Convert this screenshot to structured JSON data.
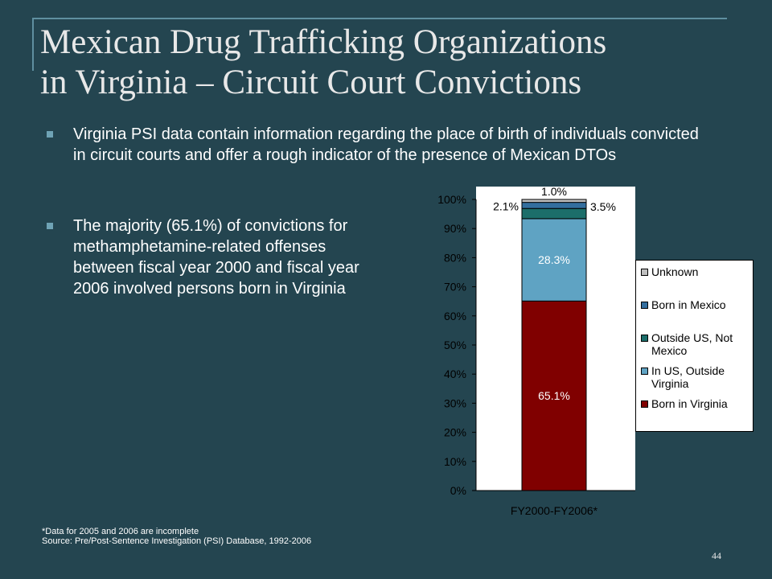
{
  "slide": {
    "title_line1": "Mexican Drug Trafficking Organizations",
    "title_line2": "in Virginia – Circuit Court Convictions",
    "bullet1": "Virginia PSI data contain information regarding the place of birth of individuals convicted in circuit courts and offer a rough indicator of the presence of Mexican DTOs",
    "bullet2": "The majority (65.1%) of convictions for methamphetamine-related offenses between fiscal year 2000 and fiscal year 2006 involved persons born in Virginia",
    "footnote1": "*Data for 2005 and 2006 are incomplete",
    "footnote2": "Source:  Pre/Post-Sentence Investigation (PSI) Database, 1992-2006",
    "page_number": "44"
  },
  "colors": {
    "background": "#244550",
    "plot_background": "#ffffff",
    "text": "#ffffff"
  },
  "chart_data": {
    "type": "bar",
    "stacked": true,
    "percent_stacked": true,
    "categories": [
      "FY2000-FY2006*"
    ],
    "ylim": [
      0,
      100
    ],
    "yticks": [
      "0%",
      "10%",
      "20%",
      "30%",
      "40%",
      "50%",
      "60%",
      "70%",
      "80%",
      "90%",
      "100%"
    ],
    "grid": false,
    "legend_position": "right",
    "series": [
      {
        "name": "Born in Virginia",
        "values": [
          65.1
        ],
        "label": "65.1%",
        "color": "#800000"
      },
      {
        "name": "In US, Outside Virginia",
        "values": [
          28.3
        ],
        "label": "28.3%",
        "color": "#5fa3c3"
      },
      {
        "name": "Outside US, Not Mexico",
        "values": [
          3.5
        ],
        "label": "3.5%",
        "color": "#1c6e6a"
      },
      {
        "name": "Born in Mexico",
        "values": [
          2.1
        ],
        "label": "2.1%",
        "color": "#336e9e"
      },
      {
        "name": "Unknown",
        "values": [
          1.0
        ],
        "label": "1.0%",
        "color": "#c0c0c0"
      }
    ],
    "legend_order": [
      "Unknown",
      "Born in Mexico",
      "Outside US, Not Mexico",
      "In US, Outside Virginia",
      "Born in Virginia"
    ]
  }
}
